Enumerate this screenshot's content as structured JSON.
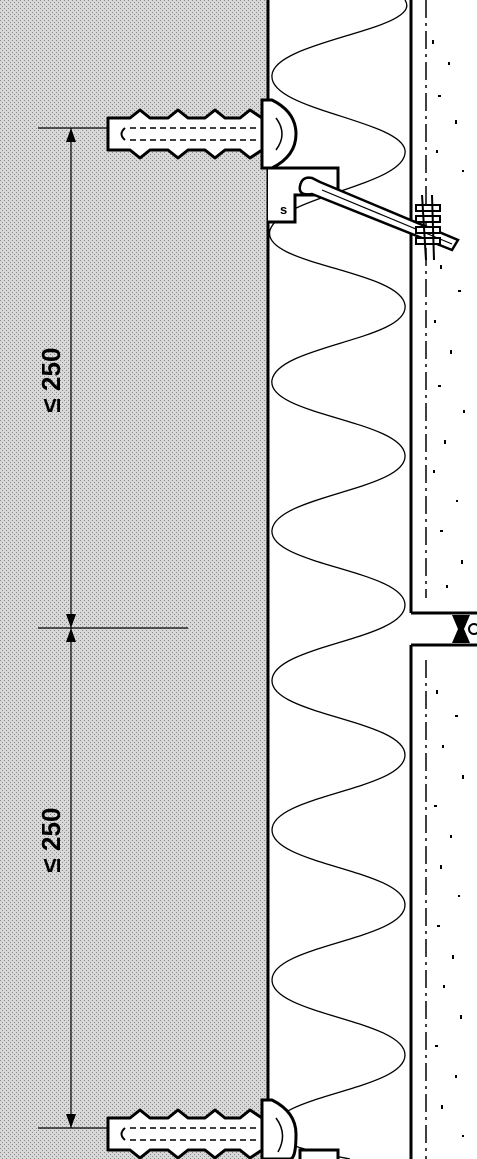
{
  "dimensions": {
    "upper_label": "≤ 250",
    "lower_label": "≤ 250"
  },
  "bracket": {
    "label": "s"
  },
  "colors": {
    "line": "#000000",
    "background": "#ffffff",
    "masonry_dot": "#9a9a9a",
    "masonry_base": "#d8d8d8"
  },
  "icons": {
    "anchor": "wall-plug-screw-icon",
    "bracket": "mounting-bracket-icon",
    "fastener": "panel-fastener-icon",
    "joint": "panel-joint-icon"
  }
}
